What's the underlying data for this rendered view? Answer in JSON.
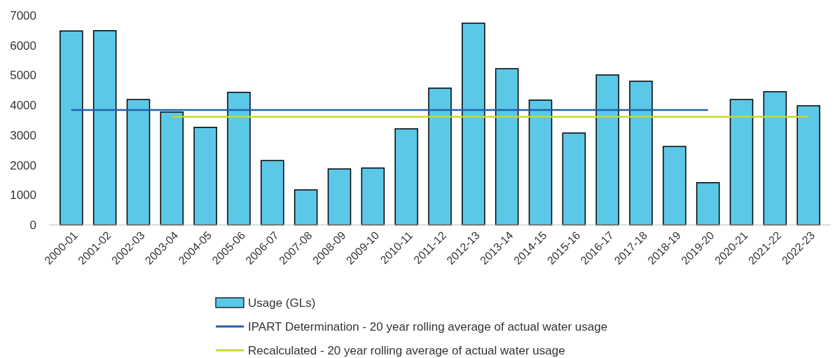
{
  "chart_data": {
    "type": "bar",
    "categories": [
      "2000-01",
      "2001-02",
      "2002-03",
      "2003-04",
      "2004-05",
      "2005-06",
      "2006-07",
      "2007-08",
      "2008-09",
      "2009-10",
      "2010-11",
      "2011-12",
      "2012-13",
      "2013-14",
      "2014-15",
      "2015-16",
      "2016-17",
      "2017-18",
      "2018-19",
      "2019-20",
      "2020-21",
      "2021-22",
      "2022-23"
    ],
    "series": [
      {
        "name": "Usage (GLs)",
        "color": "#5bc8e8",
        "values": [
          6480,
          6490,
          4190,
          3770,
          3260,
          4430,
          2150,
          1170,
          1870,
          1900,
          3210,
          4570,
          6740,
          5220,
          4170,
          3070,
          5010,
          4800,
          2620,
          1410,
          4190,
          4450,
          3980
        ]
      },
      {
        "name": "IPART Determination - 20 year rolling average of actual water usage",
        "type": "line",
        "color": "#1f5fa8",
        "values": [
          3840,
          3840,
          3840,
          3840,
          3840,
          3840,
          3840,
          3840,
          3840,
          3840,
          3840,
          3840,
          3840,
          3840,
          3840,
          3840,
          3840,
          3840,
          3840,
          3840,
          null,
          null,
          null
        ]
      },
      {
        "name": "Recalculated - 20 year rolling average of actual water usage",
        "type": "line",
        "color": "#c5d92d",
        "values": [
          null,
          null,
          null,
          3610,
          3610,
          3610,
          3610,
          3610,
          3610,
          3610,
          3610,
          3610,
          3610,
          3610,
          3610,
          3610,
          3610,
          3610,
          3610,
          3610,
          3610,
          3610,
          3610
        ]
      }
    ],
    "ylim": [
      0,
      7000
    ],
    "yticks": [
      0,
      1000,
      2000,
      3000,
      4000,
      5000,
      6000,
      7000
    ],
    "grid": false,
    "legend": "bottom",
    "marker": "none",
    "line_style": "solid"
  }
}
